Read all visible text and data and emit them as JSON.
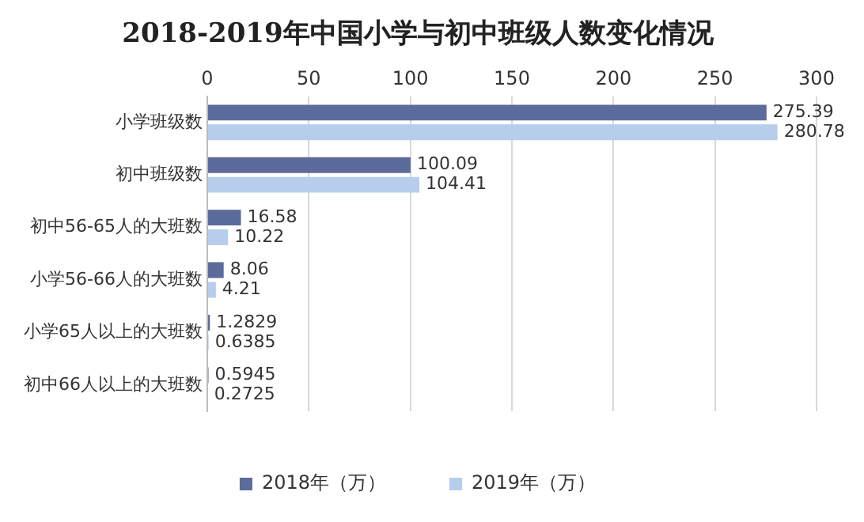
{
  "chart_data": {
    "type": "bar",
    "orientation": "horizontal",
    "title": "2018-2019年中国小学与初中班级人数变化情况",
    "categories": [
      "小学班级数",
      "初中班级数",
      "初中56-65人的大班数",
      "小学56-66人的大班数",
      "小学65人以上的大班数",
      "初中66人以上的大班数"
    ],
    "series": [
      {
        "name": "2018年（万）",
        "color": "#5b6b9b",
        "values": [
          275.39,
          100.09,
          16.58,
          8.06,
          1.2829,
          0.5945
        ]
      },
      {
        "name": "2019年（万）",
        "color": "#b7cdec",
        "values": [
          280.78,
          104.41,
          10.22,
          4.21,
          0.6385,
          0.2725
        ]
      }
    ],
    "xlim": [
      0,
      300
    ],
    "xticks": [
      0,
      50,
      100,
      150,
      200,
      250,
      300
    ],
    "grid": "x",
    "legend": "bottom",
    "data_labels": true
  }
}
